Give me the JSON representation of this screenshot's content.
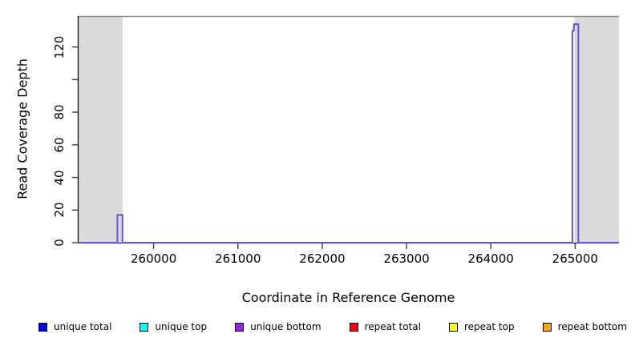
{
  "chart_data": {
    "type": "line",
    "title": "",
    "xlabel": "Coordinate in Reference Genome",
    "ylabel": "Read Coverage Depth",
    "xlim": [
      259100,
      265520
    ],
    "ylim": [
      0,
      139
    ],
    "grid": false,
    "legend_position": "bottom",
    "x_ticks": [
      {
        "value": 260000,
        "label": "260000"
      },
      {
        "value": 261000,
        "label": "261000"
      },
      {
        "value": 262000,
        "label": "262000"
      },
      {
        "value": 263000,
        "label": "263000"
      },
      {
        "value": 264000,
        "label": "264000"
      },
      {
        "value": 265000,
        "label": "265000"
      }
    ],
    "y_ticks": [
      {
        "value": 0,
        "label": "0"
      },
      {
        "value": 20,
        "label": "20"
      },
      {
        "value": 40,
        "label": "40"
      },
      {
        "value": 60,
        "label": "60"
      },
      {
        "value": 80,
        "label": "80"
      },
      {
        "value": 100,
        "label": ""
      },
      {
        "value": 120,
        "label": "120"
      }
    ],
    "shaded_regions": [
      {
        "x0": 259100,
        "x1": 259632,
        "color": "#dbdbdb"
      },
      {
        "x0": 264991,
        "x1": 265520,
        "color": "#dbdbdb"
      }
    ],
    "coverage_profile": {
      "name": "unique bottom (overlapping unique total)",
      "rendered_color": "#6b4fe1",
      "points": [
        [
          259100,
          0
        ],
        [
          259570,
          0
        ],
        [
          259570,
          17
        ],
        [
          259630,
          17
        ],
        [
          259630,
          0
        ],
        [
          264967,
          0
        ],
        [
          264967,
          130
        ],
        [
          264986,
          130
        ],
        [
          264986,
          134
        ],
        [
          265038,
          134
        ],
        [
          265038,
          0
        ],
        [
          265520,
          0
        ]
      ]
    },
    "legend": [
      {
        "label": "unique total",
        "color": "#0000ff"
      },
      {
        "label": "unique top",
        "color": "#00ffff"
      },
      {
        "label": "unique bottom",
        "color": "#a020f0"
      },
      {
        "label": "repeat total",
        "color": "#ff0000"
      },
      {
        "label": "repeat top",
        "color": "#ffff00"
      },
      {
        "label": "repeat bottom",
        "color": "#ffa500"
      }
    ],
    "colors": {
      "shading": "#dbdbdb",
      "axis_line": "#1a1a1a",
      "tick_line": "#3f3f3f",
      "top_border": "#8a8a8a",
      "series_line": "#6b4fe1"
    }
  }
}
